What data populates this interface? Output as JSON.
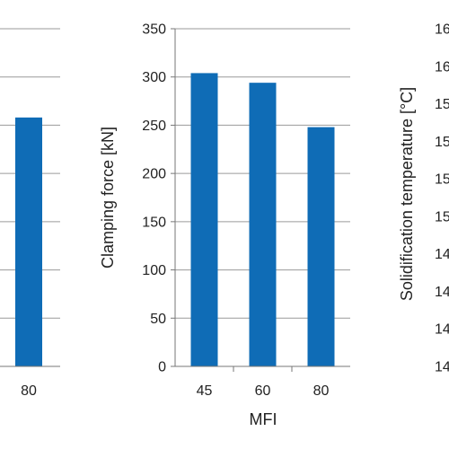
{
  "chart_data": [
    {
      "type": "bar",
      "categories": [
        "80"
      ],
      "values": [
        258
      ],
      "title": "",
      "xlabel": "",
      "ylabel": "",
      "ylim": [
        0,
        350
      ],
      "gridlines": "horizontal",
      "color": "#0f6cb6"
    },
    {
      "type": "bar",
      "categories": [
        "45",
        "60",
        "80"
      ],
      "values": [
        304,
        294,
        248
      ],
      "title": "",
      "xlabel": "MFI",
      "ylabel": "Clamping force   [kN]",
      "ylim": [
        0,
        350
      ],
      "yticks": [
        "0",
        "50",
        "100",
        "150",
        "200",
        "250",
        "300",
        "350"
      ],
      "gridlines": "horizontal",
      "color": "#0f6cb6"
    },
    {
      "type": "bar",
      "categories": [],
      "values": [],
      "title": "",
      "xlabel": "",
      "ylabel": "Solidification temperature   [°C]",
      "yticks": [
        "16",
        "16",
        "15",
        "15",
        "15",
        "15",
        "14",
        "14",
        "14",
        "14"
      ],
      "gridlines": "horizontal"
    }
  ]
}
